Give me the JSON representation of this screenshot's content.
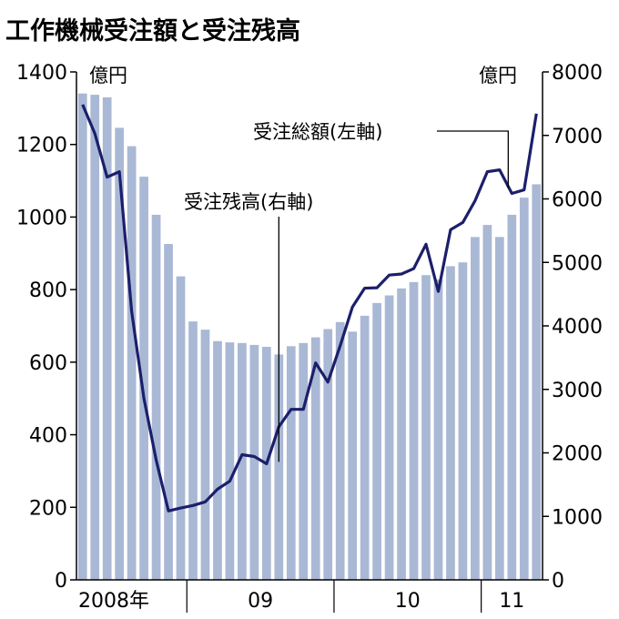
{
  "chart_data": {
    "type": "bar+line",
    "title": "工作機械受注額と受注残高",
    "left_unit": "億円",
    "right_unit": "億円",
    "left_axis": {
      "min": 0,
      "max": 1400,
      "ticks": [
        0,
        200,
        400,
        600,
        800,
        1000,
        1200,
        1400
      ]
    },
    "right_axis": {
      "min": 0,
      "max": 8000,
      "ticks": [
        0,
        1000,
        2000,
        3000,
        4000,
        5000,
        6000,
        7000,
        8000
      ]
    },
    "x_labels": [
      {
        "label": "2008年",
        "index": 0
      },
      {
        "label": "09",
        "index": 9
      },
      {
        "label": "10",
        "index": 21
      },
      {
        "label": "11",
        "index": 33
      }
    ],
    "series": [
      {
        "name": "受注残高(右軸)",
        "axis": "right",
        "kind": "bar",
        "color": "#a9b8d4",
        "values": [
          7660,
          7640,
          7600,
          7120,
          6830,
          6350,
          5750,
          5290,
          4780,
          4070,
          3940,
          3760,
          3740,
          3730,
          3700,
          3670,
          3550,
          3680,
          3730,
          3820,
          3950,
          4060,
          3910,
          4160,
          4360,
          4480,
          4590,
          4690,
          4800,
          4730,
          4940,
          5000,
          5400,
          5590,
          5400,
          5750,
          6020,
          6230
        ]
      },
      {
        "name": "受注総額(左軸)",
        "axis": "left",
        "kind": "line",
        "color": "#1c1f6b",
        "values": [
          1310,
          1230,
          1110,
          1125,
          740,
          500,
          330,
          190,
          198,
          205,
          215,
          250,
          272,
          345,
          340,
          320,
          422,
          470,
          470,
          598,
          545,
          645,
          752,
          804,
          805,
          840,
          843,
          858,
          925,
          795,
          965,
          985,
          1045,
          1125,
          1130,
          1065,
          1075,
          1285
        ]
      }
    ],
    "annotations": [
      {
        "text": "受注総額(左軸)",
        "series": 1,
        "index": 35
      },
      {
        "text": "受注残高(右軸)",
        "series": 0,
        "index": 16
      }
    ]
  }
}
